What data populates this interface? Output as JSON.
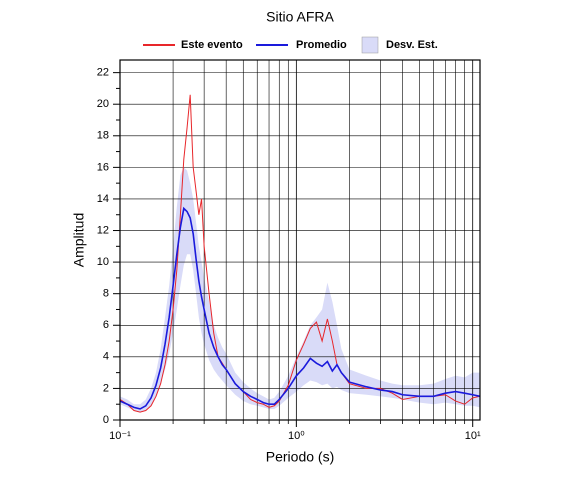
{
  "chart_data": {
    "type": "line",
    "title": "Sitio AFRA",
    "xlabel": "Periodo (s)",
    "ylabel": "Amplitud",
    "xscale": "log",
    "grid": true,
    "xlim": [
      0.1,
      11
    ],
    "ylim": [
      0,
      22.8
    ],
    "xticks": [
      {
        "value": 0.1,
        "label": "10⁻¹"
      },
      {
        "value": 1,
        "label": "10⁰"
      },
      {
        "value": 10,
        "label": "10¹"
      }
    ],
    "xgrid": [
      0.2,
      0.3,
      0.4,
      0.5,
      0.6,
      0.7,
      0.8,
      0.9,
      2,
      3,
      4,
      5,
      6,
      7,
      8,
      9
    ],
    "yticks": [
      0,
      2,
      4,
      6,
      8,
      10,
      12,
      14,
      16,
      18,
      20,
      22
    ],
    "yminor": [
      1,
      3,
      5,
      7,
      9,
      11,
      13,
      15,
      17,
      19,
      21
    ],
    "x": [
      0.1,
      0.11,
      0.12,
      0.13,
      0.14,
      0.15,
      0.16,
      0.17,
      0.18,
      0.19,
      0.2,
      0.21,
      0.22,
      0.23,
      0.24,
      0.25,
      0.26,
      0.27,
      0.28,
      0.29,
      0.3,
      0.32,
      0.34,
      0.36,
      0.38,
      0.4,
      0.45,
      0.5,
      0.55,
      0.6,
      0.65,
      0.7,
      0.75,
      0.8,
      0.9,
      1.0,
      1.1,
      1.2,
      1.3,
      1.4,
      1.5,
      1.6,
      1.7,
      1.8,
      2,
      2.5,
      3,
      3.5,
      4,
      5,
      6,
      7,
      8,
      9,
      10,
      11
    ],
    "band": {
      "name": "Desv. Est.",
      "color": "#d9dbf8",
      "lower": [
        1.0,
        0.8,
        0.6,
        0.5,
        0.6,
        0.9,
        1.5,
        2.3,
        3.2,
        4.2,
        5.5,
        7.0,
        8.5,
        9.8,
        10.5,
        10.5,
        9.5,
        8.0,
        6.5,
        5.5,
        4.8,
        3.8,
        3.2,
        2.8,
        2.5,
        2.2,
        1.6,
        1.2,
        1.0,
        0.9,
        0.8,
        0.7,
        0.7,
        0.9,
        1.4,
        1.8,
        2.2,
        2.5,
        2.4,
        2.2,
        2.3,
        2.0,
        2.1,
        1.9,
        1.7,
        1.6,
        1.5,
        1.4,
        1.3,
        1.1,
        1.0,
        1.1,
        1.0,
        0.9,
        0.9,
        0.8
      ],
      "upper": [
        1.5,
        1.3,
        1.0,
        1.0,
        1.3,
        2.0,
        3.0,
        4.5,
        6.5,
        8.5,
        11,
        13.5,
        15.5,
        16.0,
        15.8,
        15.0,
        14.0,
        12.5,
        11.0,
        10.0,
        9.0,
        7.5,
        6.0,
        5.2,
        4.6,
        4.2,
        3.0,
        2.4,
        2.0,
        1.7,
        1.5,
        1.3,
        1.4,
        1.8,
        2.8,
        4.0,
        5.0,
        6.0,
        6.5,
        7.0,
        8.7,
        7.5,
        6.0,
        4.5,
        3.2,
        2.8,
        2.5,
        2.3,
        2.2,
        2.2,
        2.3,
        2.6,
        2.8,
        2.7,
        3.0,
        3.0
      ]
    },
    "series": [
      {
        "name": "Este evento",
        "color": "#e8262a",
        "values": [
          1.3,
          1.0,
          0.6,
          0.5,
          0.6,
          0.9,
          1.5,
          2.3,
          3.5,
          5.0,
          7.0,
          9.5,
          13,
          16.5,
          18.5,
          20.6,
          16,
          14.5,
          13,
          14,
          11,
          8,
          5.5,
          4.0,
          3.6,
          3.2,
          2.3,
          1.8,
          1.3,
          1.1,
          1.0,
          0.8,
          0.9,
          1.2,
          2.2,
          3.8,
          4.8,
          5.8,
          6.2,
          5.0,
          6.4,
          5.0,
          3.5,
          3.0,
          2.3,
          2.0,
          2.0,
          1.7,
          1.3,
          1.5,
          1.5,
          1.6,
          1.2,
          1.0,
          1.4,
          1.5
        ]
      },
      {
        "name": "Promedio",
        "color": "#1a1adc",
        "values": [
          1.2,
          1.0,
          0.8,
          0.7,
          0.9,
          1.4,
          2.2,
          3.3,
          4.8,
          6.5,
          8.5,
          10.5,
          12.2,
          13.4,
          13.2,
          12.8,
          11.8,
          10.2,
          8.8,
          7.8,
          7.0,
          5.5,
          4.6,
          4.0,
          3.5,
          3.2,
          2.3,
          1.8,
          1.5,
          1.3,
          1.1,
          1.0,
          1.0,
          1.3,
          2.0,
          2.8,
          3.3,
          3.9,
          3.6,
          3.4,
          3.7,
          3.1,
          3.5,
          3.0,
          2.4,
          2.1,
          1.9,
          1.8,
          1.6,
          1.5,
          1.5,
          1.7,
          1.8,
          1.7,
          1.6,
          1.5
        ]
      }
    ]
  }
}
